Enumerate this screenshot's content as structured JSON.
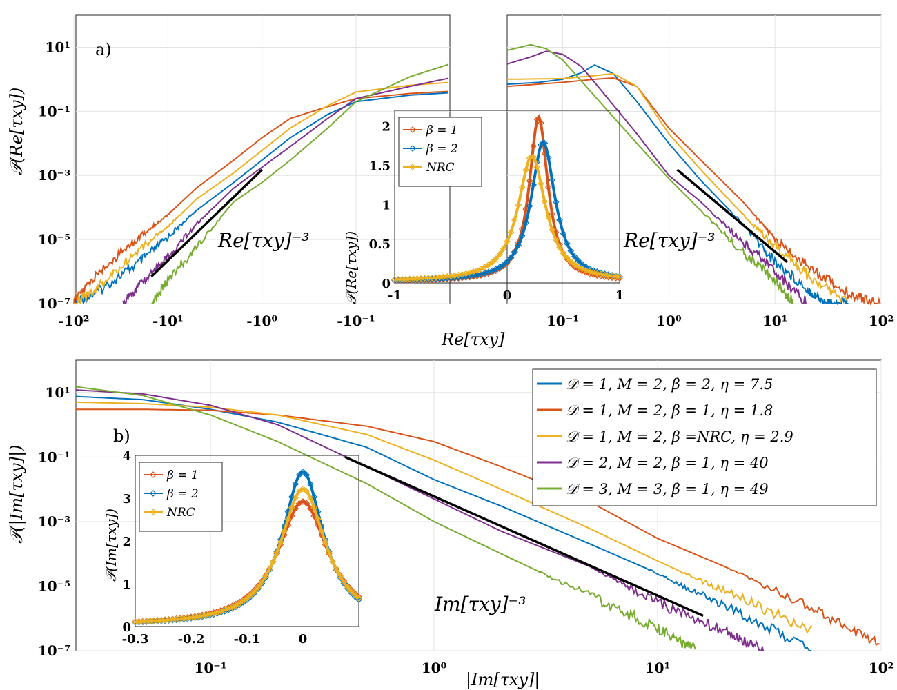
{
  "chart_data": [
    {
      "id": "a-left",
      "type": "line",
      "panel_label": "a)",
      "ylabel": "𝒫(Re[τxy])",
      "xlabel": "Re[τxy]",
      "x_scale": "symlog-negative",
      "y_scale": "log",
      "xlim": [
        -100,
        -0.03
      ],
      "ylim": [
        1e-07,
        100
      ],
      "x_tick_labels": [
        "-10²",
        "-10¹",
        "-10⁰",
        "-10⁻¹"
      ],
      "y_tick_labels": [
        "10¹",
        "10⁻¹",
        "10⁻³",
        "10⁻⁵",
        "10⁻⁷"
      ],
      "grid": true,
      "series": [
        {
          "color": "#0072BD",
          "x": [
            -100,
            -50,
            -20,
            -10,
            -5,
            -2,
            -1,
            -0.5,
            -0.2,
            -0.1,
            -0.05,
            -0.03
          ],
          "y": [
            1e-07,
            3e-07,
            2e-06,
            1.2e-05,
            8e-05,
            0.0006,
            0.003,
            0.015,
            0.08,
            0.2,
            0.32,
            0.38
          ]
        },
        {
          "color": "#D95319",
          "x": [
            -100,
            -50,
            -20,
            -10,
            -5,
            -2,
            -1,
            -0.5,
            -0.2,
            -0.1,
            -0.05,
            -0.03
          ],
          "y": [
            1.2e-07,
            1.2e-06,
            1.2e-05,
            6e-05,
            0.0004,
            0.003,
            0.015,
            0.06,
            0.14,
            0.25,
            0.36,
            0.42
          ]
        },
        {
          "color": "#EDB120",
          "x": [
            -100,
            -50,
            -20,
            -10,
            -5,
            -2,
            -1,
            -0.5,
            -0.2,
            -0.1,
            -0.05,
            -0.03
          ],
          "y": [
            1e-07,
            4e-07,
            5e-06,
            2.5e-05,
            0.00018,
            0.0012,
            0.006,
            0.03,
            0.15,
            0.4,
            0.65,
            0.8
          ]
        },
        {
          "color": "#7E2F8E",
          "x": [
            -30,
            -20,
            -10,
            -5,
            -2,
            -1,
            -0.5,
            -0.2,
            -0.1,
            -0.05,
            -0.03
          ],
          "y": [
            1e-07,
            4e-07,
            3e-06,
            3e-05,
            0.0004,
            0.0018,
            0.008,
            0.06,
            0.25,
            0.6,
            1.1
          ]
        },
        {
          "color": "#77AC30",
          "x": [
            -15,
            -10,
            -5,
            -2,
            -1,
            -0.5,
            -0.2,
            -0.1,
            -0.05,
            -0.03
          ],
          "y": [
            1e-07,
            5e-07,
            6e-06,
            0.00015,
            0.0006,
            0.003,
            0.03,
            0.2,
            1.2,
            3.0
          ]
        },
        {
          "color": "#000000",
          "x": [
            -15,
            -1
          ],
          "y": [
            7e-07,
            0.0015
          ]
        }
      ],
      "annotation": "Re[τxy]⁻³"
    },
    {
      "id": "a-right",
      "type": "line",
      "x_scale": "log",
      "y_scale": "log",
      "xlim": [
        0.03,
        100
      ],
      "ylim": [
        1e-07,
        100
      ],
      "x_tick_labels": [
        "10⁻¹",
        "10⁰",
        "10¹",
        "10²"
      ],
      "grid": true,
      "series": [
        {
          "color": "#0072BD",
          "x": [
            0.03,
            0.06,
            0.1,
            0.15,
            0.2,
            0.3,
            0.5,
            1,
            2,
            5,
            10,
            20,
            30,
            50
          ],
          "y": [
            0.7,
            0.8,
            1.0,
            1.6,
            2.8,
            1.5,
            0.2,
            0.01,
            0.0007,
            3e-05,
            2e-06,
            3e-07,
            1e-07,
            1e-07
          ]
        },
        {
          "color": "#D95319",
          "x": [
            0.03,
            0.1,
            0.2,
            0.3,
            0.5,
            1,
            2,
            5,
            10,
            20,
            50,
            100
          ],
          "y": [
            0.6,
            0.8,
            1.0,
            1.1,
            0.6,
            0.03,
            0.003,
            0.00015,
            1e-05,
            1.5e-06,
            2e-07,
            1e-07
          ]
        },
        {
          "color": "#EDB120",
          "x": [
            0.03,
            0.1,
            0.2,
            0.3,
            0.5,
            1,
            2,
            5,
            10,
            20,
            50
          ],
          "y": [
            1.0,
            1.05,
            1.3,
            1.5,
            0.6,
            0.02,
            0.0015,
            6e-05,
            6e-06,
            8e-07,
            1e-07
          ]
        },
        {
          "color": "#7E2F8E",
          "x": [
            0.03,
            0.05,
            0.07,
            0.1,
            0.15,
            0.2,
            0.5,
            1,
            2,
            5,
            10,
            20
          ],
          "y": [
            3.0,
            5.0,
            7.5,
            6.0,
            2.5,
            0.8,
            0.02,
            0.001,
            0.00015,
            8e-06,
            1e-06,
            1e-07
          ]
        },
        {
          "color": "#77AC30",
          "x": [
            0.03,
            0.05,
            0.07,
            0.1,
            0.2,
            0.5,
            1,
            2,
            5,
            10,
            15
          ],
          "y": [
            8.0,
            12,
            9.0,
            4.0,
            0.3,
            0.01,
            0.0008,
            8e-05,
            4e-06,
            5e-07,
            1e-07
          ]
        },
        {
          "color": "#000000",
          "x": [
            1.2,
            13
          ],
          "y": [
            0.0015,
            2e-06
          ]
        }
      ],
      "annotation": "Re[τxy]⁻³"
    },
    {
      "id": "a-inset",
      "type": "line",
      "ylabel": "𝒫(Re[τxy])",
      "xlim": [
        -1,
        1
      ],
      "ylim": [
        0,
        2.2
      ],
      "x_tick_labels": [
        "-1",
        "0",
        "1"
      ],
      "y_tick_labels": [
        "0",
        "0.5",
        "1",
        "1.5",
        "2"
      ],
      "legend_placement": "top-left",
      "series": [
        {
          "name": "β = 1",
          "color": "#D95319",
          "peak": 0.28,
          "height": 2.1,
          "width": 0.1
        },
        {
          "name": "β = 2",
          "color": "#0072BD",
          "peak": 0.32,
          "height": 1.78,
          "width": 0.13
        },
        {
          "name": "NRC",
          "color": "#EDB120",
          "peak": 0.22,
          "height": 1.6,
          "width": 0.15
        }
      ]
    },
    {
      "id": "b-main",
      "type": "line",
      "panel_label": "b)",
      "ylabel": "𝒫(|Im[τxy]|)",
      "xlabel": "|Im[τxy]|",
      "x_scale": "log",
      "y_scale": "log",
      "xlim": [
        0.025,
        100
      ],
      "ylim": [
        1e-07,
        100
      ],
      "x_tick_labels": [
        "10⁻¹",
        "10⁰",
        "10¹",
        "10²"
      ],
      "y_tick_labels": [
        "10¹",
        "10⁻¹",
        "10⁻³",
        "10⁻⁵",
        "10⁻⁷"
      ],
      "grid": true,
      "legend_placement": "top-right",
      "series": [
        {
          "name": "𝒟 = 1, M = 2, β = 2, η = 7.5",
          "color": "#0072BD",
          "x": [
            0.025,
            0.05,
            0.1,
            0.2,
            0.5,
            1,
            2,
            5,
            10,
            20,
            50
          ],
          "y": [
            7.5,
            6,
            3,
            1.2,
            0.2,
            0.02,
            0.003,
            0.0002,
            2.5e-05,
            2.5e-06,
            1e-07
          ]
        },
        {
          "name": "𝒟 = 1, M = 2, β = 1, η = 1.8",
          "color": "#D95319",
          "x": [
            0.025,
            0.05,
            0.1,
            0.2,
            0.5,
            1,
            2,
            5,
            10,
            20,
            50,
            100
          ],
          "y": [
            3,
            3,
            2.8,
            2,
            0.9,
            0.3,
            0.05,
            0.004,
            0.0003,
            4e-05,
            2e-06,
            1.5e-07
          ]
        },
        {
          "name": "𝒟 = 1, M = 2, β =NRC, η = 2.9",
          "color": "#EDB120",
          "x": [
            0.025,
            0.05,
            0.1,
            0.2,
            0.5,
            1,
            2,
            5,
            10,
            20,
            50
          ],
          "y": [
            5,
            4.5,
            3.5,
            2,
            0.5,
            0.08,
            0.01,
            0.0006,
            6e-05,
            7e-06,
            4e-07
          ]
        },
        {
          "name": "𝒟 = 2, M = 2, β = 1, η = 40",
          "color": "#7E2F8E",
          "x": [
            0.025,
            0.05,
            0.1,
            0.2,
            0.5,
            1,
            2,
            5,
            10,
            20,
            30
          ],
          "y": [
            12,
            9,
            4,
            1,
            0.05,
            0.005,
            0.0005,
            4e-05,
            3e-06,
            4e-07,
            1e-07
          ]
        },
        {
          "name": "𝒟 = 3, M = 3, β = 1, η = 49",
          "color": "#77AC30",
          "x": [
            0.025,
            0.05,
            0.1,
            0.2,
            0.5,
            1,
            2,
            5,
            10,
            15
          ],
          "y": [
            15,
            8,
            2,
            0.3,
            0.015,
            0.001,
            0.0001,
            5e-06,
            5e-07,
            1e-07
          ]
        },
        {
          "color": "#000000",
          "x": [
            0.4,
            16
          ],
          "y": [
            0.1,
            1.2e-06
          ]
        }
      ],
      "annotation": "Im[τxy]⁻³"
    },
    {
      "id": "b-inset",
      "type": "line",
      "ylabel": "𝒫(Im[τxy])",
      "xlim": [
        -0.3,
        0.1
      ],
      "ylim": [
        0,
        4
      ],
      "x_tick_labels": [
        "-0.3",
        "-0.2",
        "-0.1",
        "0"
      ],
      "y_tick_labels": [
        "0",
        "1",
        "2",
        "3",
        "4"
      ],
      "legend_placement": "top-left",
      "series": [
        {
          "name": "β = 1",
          "color": "#D95319",
          "peak": 0.0,
          "height": 2.9,
          "width": 0.055
        },
        {
          "name": "β = 2",
          "color": "#0072BD",
          "peak": 0.0,
          "height": 3.6,
          "width": 0.045
        },
        {
          "name": "NRC",
          "color": "#EDB120",
          "peak": 0.0,
          "height": 3.2,
          "width": 0.05
        }
      ]
    }
  ]
}
